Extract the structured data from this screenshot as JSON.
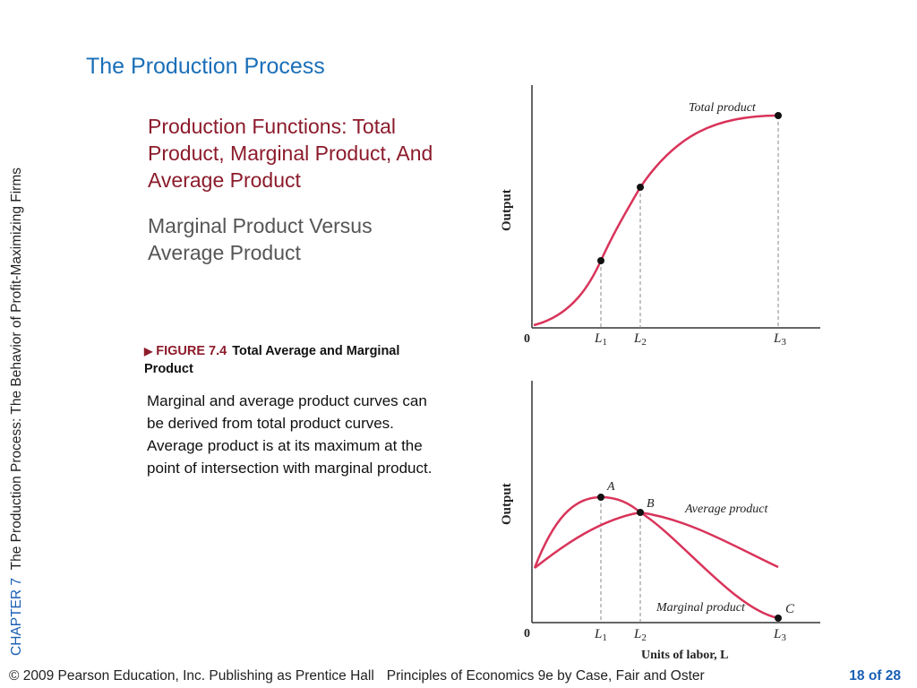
{
  "sidebar": {
    "chapter": "CHAPTER 7",
    "title": "The Production Process:  The Behavior of Profit-Maximizing Firms"
  },
  "slide": {
    "title": "The Production Process",
    "subtitle": "Production Functions:  Total Product, Marginal Product, And Average Product",
    "subhead": "Marginal Product Versus Average Product"
  },
  "figure": {
    "number": "FIGURE 7.4",
    "caption": "Total Average and Marginal Product",
    "body_1": "Marginal and average product curves can be derived from total product curves.",
    "body_2": "Average product is at its maximum at the point of intersection with marginal product."
  },
  "chart_data": [
    {
      "type": "line",
      "ylabel": "Output",
      "origin_label": "0",
      "x_ticks": [
        "L1",
        "L2",
        "L3"
      ],
      "series": [
        {
          "name": "Total product",
          "shape": "S-shaped, rising then flattening",
          "marked_points": [
            "L1",
            "L2",
            "L3"
          ]
        }
      ]
    },
    {
      "type": "line",
      "ylabel": "Output",
      "xlabel": "Units of labor, L",
      "origin_label": "0",
      "x_ticks": [
        "L1",
        "L2",
        "L3"
      ],
      "points": [
        {
          "label": "A",
          "at": "L1",
          "note": "maximum of marginal product"
        },
        {
          "label": "B",
          "at": "L2",
          "note": "marginal product crosses average product at its maximum"
        },
        {
          "label": "C",
          "at": "L3",
          "note": "marginal product reaches zero"
        }
      ],
      "series": [
        {
          "name": "Average product"
        },
        {
          "name": "Marginal product"
        }
      ]
    }
  ],
  "footer": {
    "copyright": "© 2009 Pearson Education, Inc. Publishing as Prentice Hall",
    "book": "Principles of Economics 9e by Case, Fair and Oster",
    "page": "18 of 28"
  },
  "colors": {
    "title": "#1a6fb8",
    "accent": "#8c1b2b",
    "curve": "#d9345a",
    "chapter": "#1a5fb4"
  }
}
